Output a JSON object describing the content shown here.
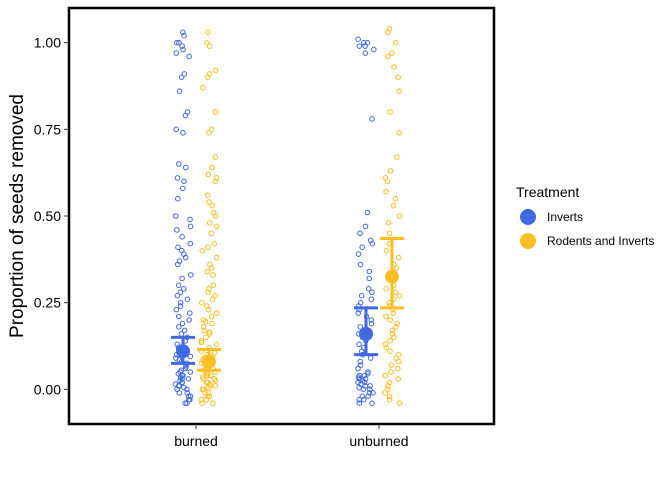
{
  "chart_data": {
    "type": "scatter",
    "ylabel": "Proportion of seeds removed",
    "xlabel": "",
    "categories": [
      "burned",
      "unburned"
    ],
    "ylim": [
      -0.1,
      1.1
    ],
    "yticks": [
      0.0,
      0.25,
      0.5,
      0.75,
      1.0
    ],
    "ytick_labels": [
      "0.00",
      "0.25",
      "0.50",
      "0.75",
      "1.00"
    ],
    "grid": false,
    "legend": {
      "title": "Treatment",
      "placement": "right",
      "entries": [
        "Inverts",
        "Rodents and Inverts"
      ]
    },
    "series": [
      {
        "name": "Inverts",
        "color": "#4169E1",
        "summary": [
          {
            "category": "burned",
            "mean": 0.11,
            "lower": 0.075,
            "upper": 0.15
          },
          {
            "category": "unburned",
            "mean": 0.16,
            "lower": 0.1,
            "upper": 0.235
          }
        ],
        "points": {
          "burned": [
            1.03,
            1.02,
            1.0,
            1.0,
            0.99,
            0.98,
            0.97,
            0.96,
            0.91,
            0.9,
            0.86,
            0.8,
            0.79,
            0.75,
            0.74,
            0.65,
            0.64,
            0.61,
            0.6,
            0.58,
            0.55,
            0.5,
            0.49,
            0.47,
            0.46,
            0.44,
            0.42,
            0.41,
            0.4,
            0.39,
            0.38,
            0.37,
            0.36,
            0.33,
            0.32,
            0.3,
            0.29,
            0.28,
            0.27,
            0.26,
            0.25,
            0.24,
            0.23,
            0.22,
            0.21,
            0.2,
            0.19,
            0.18,
            0.17,
            0.16,
            0.15,
            0.14,
            0.13,
            0.12,
            0.11,
            0.1,
            0.09,
            0.08,
            0.07,
            0.06,
            0.05,
            0.05,
            0.04,
            0.04,
            0.03,
            0.03,
            0.02,
            0.02,
            0.01,
            0.01,
            0.0,
            0.0,
            -0.01,
            -0.01,
            -0.02,
            -0.02,
            -0.03,
            -0.03,
            -0.04,
            -0.04,
            0.005,
            0.015,
            0.025,
            0.035,
            0.045,
            0.055,
            0.065,
            0.075,
            0.085,
            0.095
          ],
          "unburned": [
            1.01,
            1.0,
            1.0,
            0.99,
            0.99,
            0.98,
            0.97,
            0.78,
            0.51,
            0.47,
            0.45,
            0.43,
            0.42,
            0.41,
            0.39,
            0.36,
            0.34,
            0.32,
            0.29,
            0.28,
            0.27,
            0.26,
            0.25,
            0.24,
            0.23,
            0.22,
            0.21,
            0.2,
            0.19,
            0.18,
            0.17,
            0.16,
            0.15,
            0.14,
            0.13,
            0.12,
            0.11,
            0.1,
            0.09,
            0.08,
            0.07,
            0.06,
            0.05,
            0.04,
            0.04,
            0.03,
            0.03,
            0.02,
            0.02,
            0.01,
            0.01,
            0.0,
            0.0,
            -0.01,
            -0.01,
            -0.02,
            -0.02,
            -0.03,
            -0.03,
            -0.04,
            -0.04,
            0.005,
            0.015,
            0.025,
            0.035,
            0.045
          ]
        }
      },
      {
        "name": "Rodents and Inverts",
        "color": "#FBBF24",
        "summary": [
          {
            "category": "burned",
            "mean": 0.08,
            "lower": 0.055,
            "upper": 0.115
          },
          {
            "category": "unburned",
            "mean": 0.325,
            "lower": 0.235,
            "upper": 0.435
          }
        ],
        "points": {
          "burned": [
            1.03,
            1.0,
            0.99,
            0.92,
            0.91,
            0.9,
            0.87,
            0.8,
            0.75,
            0.74,
            0.67,
            0.64,
            0.62,
            0.61,
            0.6,
            0.56,
            0.54,
            0.53,
            0.51,
            0.5,
            0.48,
            0.47,
            0.45,
            0.42,
            0.41,
            0.4,
            0.38,
            0.36,
            0.35,
            0.34,
            0.33,
            0.3,
            0.29,
            0.28,
            0.27,
            0.26,
            0.25,
            0.24,
            0.23,
            0.22,
            0.21,
            0.2,
            0.19,
            0.18,
            0.17,
            0.16,
            0.15,
            0.14,
            0.13,
            0.12,
            0.11,
            0.1,
            0.09,
            0.08,
            0.07,
            0.06,
            0.05,
            0.05,
            0.04,
            0.04,
            0.03,
            0.03,
            0.02,
            0.02,
            0.01,
            0.01,
            0.0,
            0.0,
            -0.01,
            -0.01,
            -0.02,
            -0.02,
            -0.03,
            -0.03,
            -0.04,
            -0.04,
            0.005,
            0.015,
            0.025,
            0.035,
            0.045,
            0.055,
            0.065,
            0.075,
            0.085,
            0.095,
            0.105,
            0.135,
            0.165,
            0.195
          ],
          "unburned": [
            1.04,
            1.03,
            1.0,
            0.97,
            0.96,
            0.93,
            0.9,
            0.86,
            0.8,
            0.74,
            0.67,
            0.63,
            0.61,
            0.6,
            0.57,
            0.55,
            0.53,
            0.5,
            0.48,
            0.45,
            0.42,
            0.4,
            0.38,
            0.36,
            0.35,
            0.33,
            0.32,
            0.3,
            0.29,
            0.28,
            0.27,
            0.26,
            0.25,
            0.24,
            0.23,
            0.22,
            0.21,
            0.2,
            0.19,
            0.18,
            0.17,
            0.16,
            0.15,
            0.14,
            0.13,
            0.12,
            0.11,
            0.1,
            0.09,
            0.08,
            0.07,
            0.06,
            0.05,
            0.04,
            0.03,
            0.02,
            0.01,
            0.0,
            -0.01,
            -0.02,
            -0.03,
            -0.04
          ]
        }
      }
    ]
  }
}
